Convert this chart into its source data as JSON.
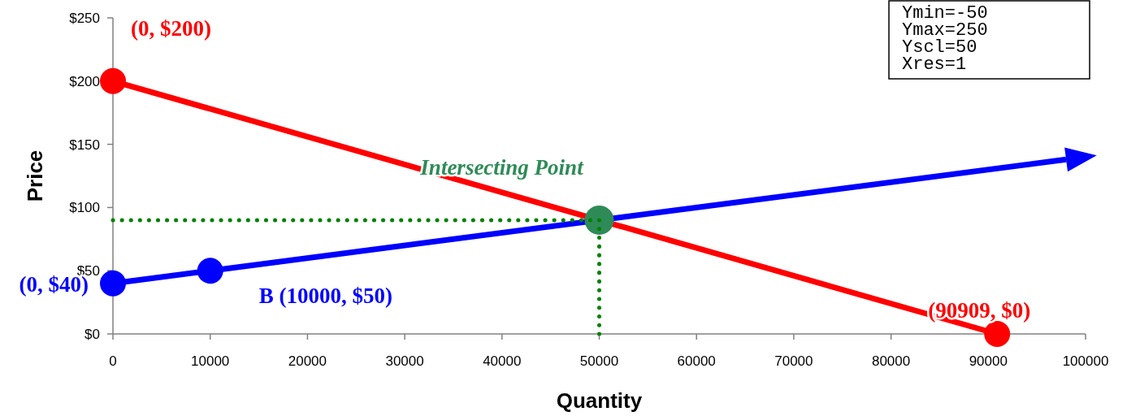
{
  "chart_data": {
    "type": "line",
    "xlabel": "Quantity",
    "ylabel": "Price",
    "xlim": [
      0,
      100000
    ],
    "xticks": [
      0,
      10000,
      20000,
      30000,
      40000,
      50000,
      60000,
      70000,
      80000,
      90000,
      100000
    ],
    "ylim": [
      0,
      250
    ],
    "yticks": [
      {
        "value": 0,
        "label": "$0"
      },
      {
        "value": 50,
        "label": "$50"
      },
      {
        "value": 100,
        "label": "$100"
      },
      {
        "value": 150,
        "label": "$150"
      },
      {
        "value": 200,
        "label": "$200"
      },
      {
        "value": 250,
        "label": "$250"
      }
    ],
    "series": [
      {
        "color": "#ff0000",
        "x": [
          0,
          90909
        ],
        "values": [
          200,
          0
        ],
        "marker": "circle",
        "line_style": "solid"
      },
      {
        "color": "#0000ff",
        "x": [
          0,
          10000,
          98000
        ],
        "values": [
          40,
          50,
          138
        ],
        "marker": "circle",
        "line_style": "solid"
      },
      {
        "color": "#008000",
        "x": [
          0,
          50000
        ],
        "values": [
          90,
          90
        ],
        "marker": "none",
        "line_style": "dotted"
      },
      {
        "color": "#008000",
        "x": [
          50000,
          50000
        ],
        "values": [
          90,
          0
        ],
        "marker": "none",
        "line_style": "dotted"
      },
      {
        "type": "scatter",
        "color": "#2e8b57",
        "x": [
          50000
        ],
        "values": [
          90
        ],
        "marker": "circle"
      }
    ],
    "annotations": [
      {
        "text": "(0, $200)",
        "x": 0,
        "y": 200
      },
      {
        "text": "(0, $40)",
        "x": 0,
        "y": 40
      },
      {
        "text": "B (10000, $50)",
        "x": 10000,
        "y": 50
      },
      {
        "text": "(90909, $0)",
        "x": 90909,
        "y": 0
      },
      {
        "text": "Intersecting Point",
        "x": 50000,
        "y": 90
      },
      "Ymin=-50",
      "Ymax=250",
      "Yscl=50",
      "Xres=1"
    ]
  }
}
